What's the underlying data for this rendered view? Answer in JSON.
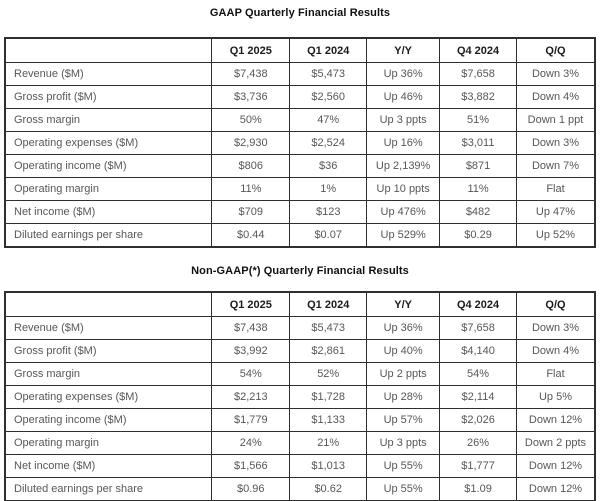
{
  "styles": {
    "background": "#ffffff",
    "border_color": "#2f2f2f",
    "title_color": "#111111",
    "header_text_color": "#1c1c1c",
    "body_text_color": "#55575c"
  },
  "tables": [
    {
      "title": "GAAP Quarterly Financial Results",
      "columns": [
        "",
        "Q1 2025",
        "Q1 2024",
        "Y/Y",
        "Q4 2024",
        "Q/Q"
      ],
      "rows": [
        [
          "Revenue ($M)",
          "$7,438",
          "$5,473",
          "Up 36%",
          "$7,658",
          "Down 3%"
        ],
        [
          "Gross profit ($M)",
          "$3,736",
          "$2,560",
          "Up 46%",
          "$3,882",
          "Down 4%"
        ],
        [
          "Gross margin",
          "50%",
          "47%",
          "Up 3 ppts",
          "51%",
          "Down 1 ppt"
        ],
        [
          "Operating expenses ($M)",
          "$2,930",
          "$2,524",
          "Up 16%",
          "$3,011",
          "Down 3%"
        ],
        [
          "Operating income ($M)",
          "$806",
          "$36",
          "Up 2,139%",
          "$871",
          "Down 7%"
        ],
        [
          "Operating margin",
          "11%",
          "1%",
          "Up 10 ppts",
          "11%",
          "Flat"
        ],
        [
          "Net income ($M)",
          "$709",
          "$123",
          "Up 476%",
          "$482",
          "Up 47%"
        ],
        [
          "Diluted earnings per share",
          "$0.44",
          "$0.07",
          "Up 529%",
          "$0.29",
          "Up 52%"
        ]
      ]
    },
    {
      "title": "Non-GAAP(*) Quarterly Financial Results",
      "columns": [
        "",
        "Q1 2025",
        "Q1 2024",
        "Y/Y",
        "Q4 2024",
        "Q/Q"
      ],
      "rows": [
        [
          "Revenue ($M)",
          "$7,438",
          "$5,473",
          "Up 36%",
          "$7,658",
          "Down 3%"
        ],
        [
          "Gross profit ($M)",
          "$3,992",
          "$2,861",
          "Up 40%",
          "$4,140",
          "Down 4%"
        ],
        [
          "Gross margin",
          "54%",
          "52%",
          "Up 2 ppts",
          "54%",
          "Flat"
        ],
        [
          "Operating expenses ($M)",
          "$2,213",
          "$1,728",
          "Up 28%",
          "$2,114",
          "Up 5%"
        ],
        [
          "Operating income ($M)",
          "$1,779",
          "$1,133",
          "Up 57%",
          "$2,026",
          "Down 12%"
        ],
        [
          "Operating margin",
          "24%",
          "21%",
          "Up 3 ppts",
          "26%",
          "Down 2 ppts"
        ],
        [
          "Net income ($M)",
          "$1,566",
          "$1,013",
          "Up 55%",
          "$1,777",
          "Down 12%"
        ],
        [
          "Diluted earnings per share",
          "$0.96",
          "$0.62",
          "Up 55%",
          "$1.09",
          "Down 12%"
        ]
      ]
    }
  ]
}
